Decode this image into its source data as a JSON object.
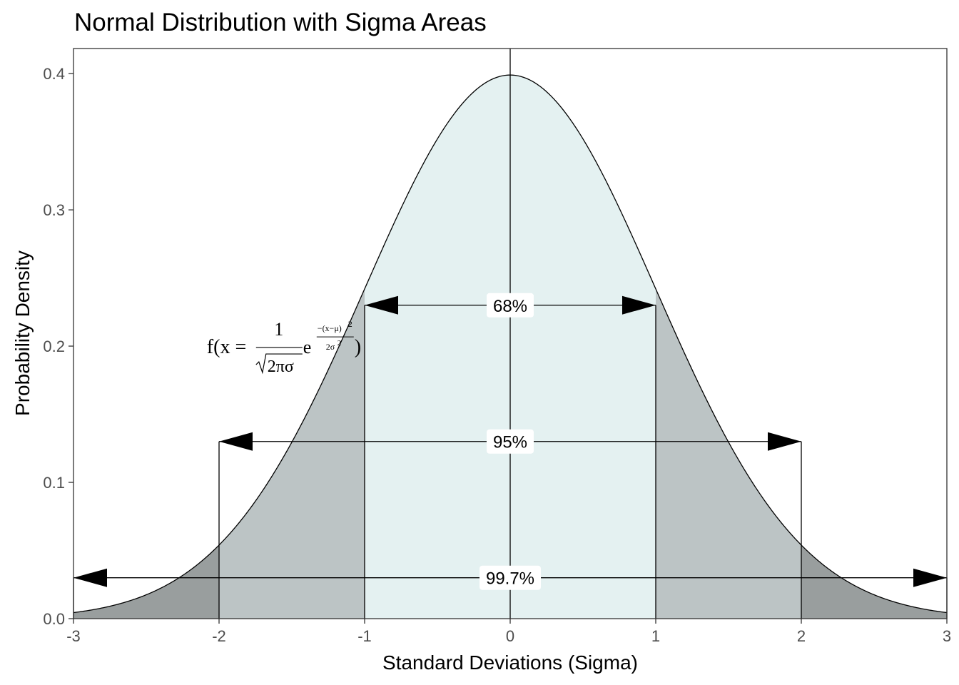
{
  "chart_data": {
    "type": "area",
    "title": "Normal Distribution with Sigma Areas",
    "xlabel": "Standard Deviations (Sigma)",
    "ylabel": "Probability Density",
    "xlim": [
      -3,
      3
    ],
    "ylim": [
      0,
      0.42
    ],
    "x_ticks": [
      -3,
      -2,
      -1,
      0,
      1,
      2,
      3
    ],
    "x_tick_labels": [
      "-3",
      "-2",
      "-1",
      "0",
      "1",
      "2",
      "3"
    ],
    "y_ticks": [
      0.0,
      0.1,
      0.2,
      0.3,
      0.4
    ],
    "y_tick_labels": [
      "0.0",
      "0.1",
      "0.2",
      "0.3",
      "0.4"
    ],
    "grid": false,
    "curve": {
      "distribution": "normal",
      "mean": 0,
      "sd": 1
    },
    "regions": [
      {
        "from": -1,
        "to": 1,
        "color": "#e4f1f1"
      },
      {
        "from": -2,
        "to": -1,
        "color": "#bcc4c5"
      },
      {
        "from": 1,
        "to": 2,
        "color": "#bcc4c5"
      },
      {
        "from": -3,
        "to": -2,
        "color": "#999e9e"
      },
      {
        "from": 2,
        "to": 3,
        "color": "#999e9e"
      }
    ],
    "intervals": [
      {
        "from": -1,
        "to": 1,
        "y": 0.23,
        "label": "68%"
      },
      {
        "from": -2,
        "to": 2,
        "y": 0.13,
        "label": "95%"
      },
      {
        "from": -3,
        "to": 3,
        "y": 0.03,
        "label": "99.7%"
      }
    ],
    "vertical_lines": [
      0
    ],
    "annotation": {
      "x": -2.05,
      "y": 0.2,
      "prefix": "f(x = ",
      "numerator": "1",
      "denominator": "2πσ",
      "base": "e",
      "exp_numerator": "−(x−μ)",
      "exp_numerator_power": "2",
      "exp_denominator": "2σ",
      "exp_denominator_power": "2",
      "suffix": ")"
    }
  }
}
